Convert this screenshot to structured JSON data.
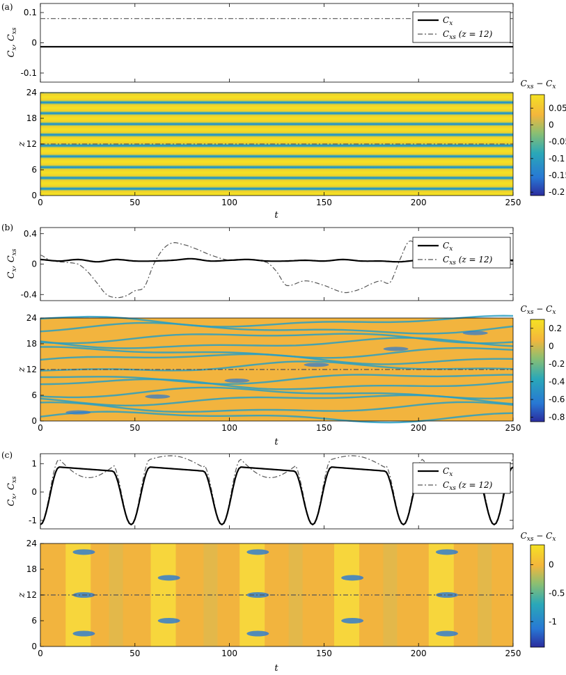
{
  "colors": {
    "yellow": "#f5e223",
    "orange": "#f4b63c",
    "teal": "#2aa8b8",
    "blue": "#2878d4",
    "navy": "#2b2c9e",
    "line_black": "#000000",
    "line_gray": "#555555"
  },
  "chart_data": [
    {
      "panel": "(a)",
      "type": "line",
      "ylabel": "C_x,  C_xs",
      "xlim": [
        0,
        250
      ],
      "ylim": [
        -0.13,
        0.13
      ],
      "yticks": [
        -0.1,
        0,
        0.1
      ],
      "ytick_labels": [
        "-0.1",
        "0",
        "0.1"
      ],
      "legend_position": "top-right",
      "series": [
        {
          "name": "C_x",
          "style": "solid",
          "x": [
            0,
            250
          ],
          "values": [
            -0.013,
            -0.013
          ]
        },
        {
          "name": "C_xs (z = 12)",
          "style": "dashdot",
          "x": [
            0,
            250
          ],
          "values": [
            0.08,
            0.08
          ]
        }
      ]
    },
    {
      "panel": "(a)",
      "type": "heatmap",
      "title": "C_xs − C_x",
      "xlabel": "t",
      "ylabel": "z",
      "xlim": [
        0,
        250
      ],
      "ylim": [
        0,
        24
      ],
      "xticks": [
        0,
        50,
        100,
        150,
        200,
        250
      ],
      "yticks": [
        0,
        6,
        12,
        18,
        24
      ],
      "reference_line_z": 12,
      "colorbar": {
        "min": -0.21,
        "max": 0.09,
        "ticks": [
          0.05,
          0,
          -0.05,
          -0.1,
          -0.15,
          -0.2
        ],
        "tick_labels": [
          "0.05",
          "0",
          "-0.05",
          "-0.1",
          "-0.15",
          "-0.2"
        ]
      },
      "pattern": "horizontal stripes",
      "stripe_count": 20
    },
    {
      "panel": "(b)",
      "type": "line",
      "ylabel": "C_x,  C_xs",
      "xlim": [
        0,
        250
      ],
      "ylim": [
        -0.48,
        0.48
      ],
      "yticks": [
        -0.4,
        0,
        0.4
      ],
      "ytick_labels": [
        "-0.4",
        "0",
        "0.4"
      ],
      "legend_position": "top-right",
      "series": [
        {
          "name": "C_x",
          "style": "solid",
          "x": [
            0,
            10,
            20,
            30,
            40,
            50,
            60,
            70,
            80,
            90,
            100,
            110,
            120,
            130,
            140,
            150,
            160,
            170,
            180,
            190,
            200,
            210,
            220,
            230,
            240,
            250
          ],
          "values": [
            0.06,
            0.04,
            0.06,
            0.03,
            0.06,
            0.04,
            0.04,
            0.05,
            0.07,
            0.04,
            0.05,
            0.06,
            0.04,
            0.04,
            0.05,
            0.04,
            0.06,
            0.04,
            0.04,
            0.03,
            0.05,
            0.04,
            0.05,
            0.05,
            0.05,
            0.05
          ]
        },
        {
          "name": "C_xs (z = 12)",
          "style": "dashdot",
          "x": [
            0,
            5,
            10,
            20,
            25,
            30,
            35,
            40,
            45,
            50,
            55,
            60,
            65,
            70,
            75,
            80,
            90,
            100,
            110,
            120,
            125,
            130,
            140,
            150,
            160,
            165,
            170,
            175,
            180,
            185,
            190,
            195,
            200,
            205,
            210,
            220,
            230,
            240,
            245,
            250
          ],
          "values": [
            0.12,
            0.05,
            0.03,
            0.0,
            -0.1,
            -0.25,
            -0.4,
            -0.44,
            -0.42,
            -0.35,
            -0.3,
            0.0,
            0.2,
            0.28,
            0.26,
            0.22,
            0.12,
            0.05,
            0.06,
            0.02,
            -0.1,
            -0.28,
            -0.22,
            -0.28,
            -0.37,
            -0.36,
            -0.32,
            -0.26,
            -0.22,
            -0.24,
            0.05,
            0.3,
            0.22,
            0.12,
            0.08,
            0.06,
            0.04,
            0.02,
            -0.04,
            0.04
          ]
        }
      ]
    },
    {
      "panel": "(b)",
      "type": "heatmap",
      "title": "C_xs − C_x",
      "xlabel": "t",
      "ylabel": "z",
      "xlim": [
        0,
        250
      ],
      "ylim": [
        0,
        24
      ],
      "xticks": [
        0,
        50,
        100,
        150,
        200,
        250
      ],
      "yticks": [
        0,
        6,
        12,
        18,
        24
      ],
      "reference_line_z": 12,
      "colorbar": {
        "min": -0.85,
        "max": 0.3,
        "ticks": [
          0.2,
          0,
          -0.2,
          -0.4,
          -0.6,
          -0.8
        ],
        "tick_labels": [
          "0.2",
          "0",
          "-0.2",
          "-0.4",
          "-0.6",
          "-0.8"
        ]
      },
      "pattern": "meandering streaks"
    },
    {
      "panel": "(c)",
      "type": "line",
      "ylabel": "C_x,  C_xs",
      "xlim": [
        0,
        250
      ],
      "ylim": [
        -1.3,
        1.35
      ],
      "yticks": [
        -1,
        0,
        1
      ],
      "ytick_labels": [
        "-1",
        "0",
        "1"
      ],
      "legend_position": "top-right",
      "series": [
        {
          "name": "C_x",
          "style": "solid",
          "period": 48,
          "first_min_t": 48,
          "min": -1.15,
          "max": 0.88
        },
        {
          "name": "C_xs (z = 12)",
          "style": "dashdot",
          "period": 48,
          "first_min_t": 48,
          "min": -1.15,
          "max": 1.15
        }
      ]
    },
    {
      "panel": "(c)",
      "type": "heatmap",
      "title": "C_xs − C_x",
      "xlabel": "t",
      "ylabel": "z",
      "xlim": [
        0,
        250
      ],
      "ylim": [
        0,
        24
      ],
      "xticks": [
        0,
        50,
        100,
        150,
        200,
        250
      ],
      "yticks": [
        0,
        6,
        12,
        18,
        24
      ],
      "reference_line_z": 12,
      "colorbar": {
        "min": -1.45,
        "max": 0.35,
        "ticks": [
          0,
          -0.5,
          -1
        ],
        "tick_labels": [
          "0",
          "-0.5",
          "-1"
        ]
      },
      "pattern": "periodic vertical bands"
    }
  ]
}
